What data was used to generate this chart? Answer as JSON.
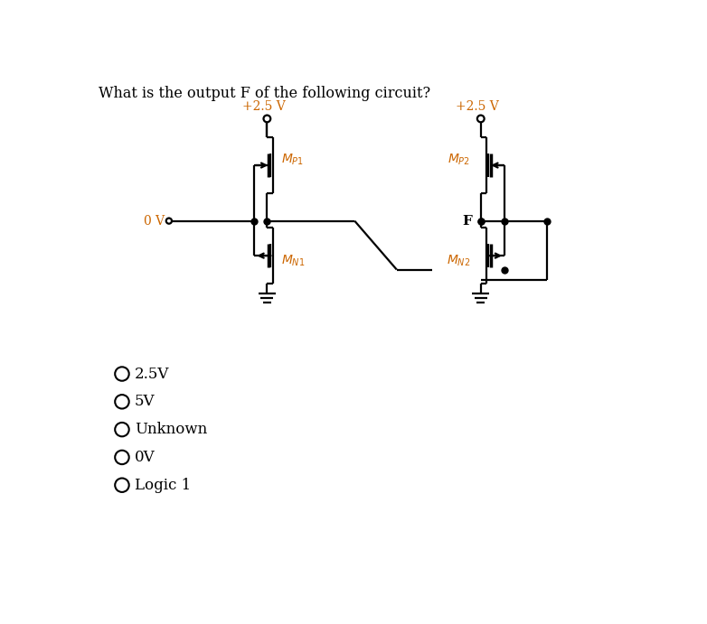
{
  "title": "What is the output F of the following circuit?",
  "title_fontsize": 11.5,
  "background_color": "#ffffff",
  "vdd1_label": "+2.5 V",
  "vdd2_label": "+2.5 V",
  "input_label": "0 V",
  "f_label": "F",
  "mp1_label": "M_{P1}",
  "mn1_label": "M_{N1}",
  "mp2_label": "M_{P2}",
  "mn2_label": "M_{N2}",
  "options": [
    "2.5V",
    "5V",
    "Unknown",
    "0V",
    "Logic 1"
  ],
  "option_fontsize": 12
}
